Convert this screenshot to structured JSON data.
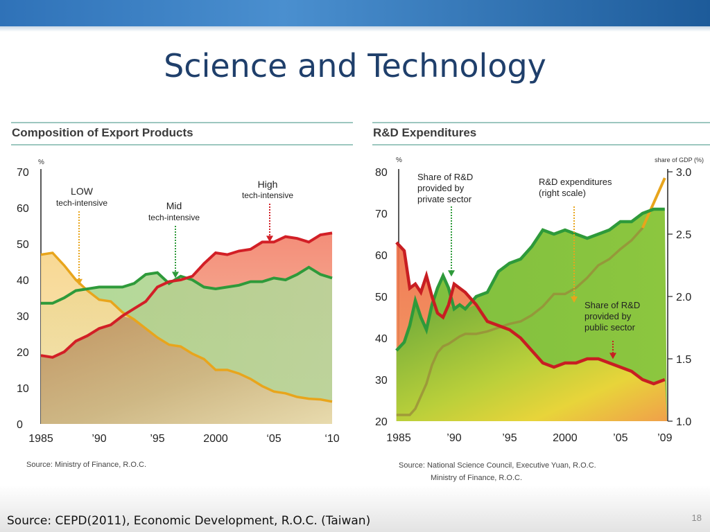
{
  "slide": {
    "title": "Science and Technology",
    "source": "Source: CEPD(2011), Economic Development, R.O.C. (Taiwan)",
    "page_number": "18"
  },
  "colors": {
    "topbar": "#2f72b8",
    "title": "#1f3f6b",
    "low": "#e8a51c",
    "mid": "#2e9a3a",
    "high": "#d21f26",
    "rd": "#e8a51c"
  },
  "chart_data": [
    {
      "type": "area",
      "title": "Composition of Export Products",
      "ylabel": "%",
      "ylim": [
        0,
        70
      ],
      "yticks": [
        "0",
        "10",
        "20",
        "30",
        "40",
        "50",
        "60",
        "70"
      ],
      "xticks": [
        {
          "year": 1985,
          "label": "1985"
        },
        {
          "year": 1990,
          "label": "’90"
        },
        {
          "year": 1995,
          "label": "’95"
        },
        {
          "year": 2000,
          "label": "2000"
        },
        {
          "year": 2005,
          "label": "‘05"
        },
        {
          "year": 2010,
          "label": "‘10"
        }
      ],
      "xlim": [
        1985,
        2010
      ],
      "x": [
        1985,
        1986,
        1987,
        1988,
        1989,
        1990,
        1991,
        1992,
        1993,
        1994,
        1995,
        1996,
        1997,
        1998,
        1999,
        2000,
        2001,
        2002,
        2003,
        2004,
        2005,
        2006,
        2007,
        2008,
        2009,
        2010
      ],
      "series": [
        {
          "key": "high",
          "values": [
            19,
            18.5,
            20,
            23,
            24.5,
            26.5,
            27.5,
            30,
            32,
            34,
            38,
            39.5,
            40,
            41,
            44.5,
            47.5,
            47,
            48,
            48.5,
            50.5,
            50.5,
            52,
            51.5,
            50.5,
            52.5,
            53
          ]
        },
        {
          "key": "mid",
          "values": [
            33.5,
            33.5,
            35,
            37,
            37.5,
            38,
            38,
            38,
            39,
            41.5,
            42,
            39,
            41,
            40,
            38,
            37.5,
            38,
            38.5,
            39.5,
            39.5,
            40.5,
            40,
            41.5,
            43.5,
            41.5,
            40.5
          ]
        },
        {
          "key": "low",
          "values": [
            47,
            47.5,
            44,
            40,
            37,
            34.5,
            34,
            31,
            29,
            26.5,
            24,
            22,
            21.5,
            19.5,
            18,
            15,
            15,
            14,
            12.5,
            10.5,
            9,
            8.5,
            7.5,
            7,
            6.8,
            6.2
          ]
        }
      ],
      "annotations": [
        {
          "key": "low",
          "lines": [
            "LOW",
            "tech-intensive"
          ]
        },
        {
          "key": "mid",
          "lines": [
            "Mid",
            "tech-intensive"
          ]
        },
        {
          "key": "high",
          "lines": [
            "High",
            "tech-intensive"
          ]
        }
      ],
      "source": "Source: Ministry of Finance, R.O.C."
    },
    {
      "type": "area",
      "title": "R&D Expenditures",
      "ylabel": "%",
      "ylim": [
        20,
        80
      ],
      "yticks": [
        "20",
        "30",
        "40",
        "50",
        "60",
        "70",
        "80"
      ],
      "y2label": "share of GDP (%)",
      "y2lim": [
        1.0,
        3.0
      ],
      "y2ticks": [
        "1.0",
        "1.5",
        "2.0",
        "2.5",
        "3.0"
      ],
      "xticks": [
        {
          "year": 1985,
          "label": "1985"
        },
        {
          "year": 1990,
          "label": "’90"
        },
        {
          "year": 1995,
          "label": "’95"
        },
        {
          "year": 2000,
          "label": "2000"
        },
        {
          "year": 2005,
          "label": "’05"
        },
        {
          "year": 2009,
          "label": "’09"
        }
      ],
      "xlim": [
        1985,
        2009.2
      ],
      "x": [
        1984.8,
        1985.5,
        1986,
        1986.5,
        1987,
        1987.5,
        1988,
        1988.5,
        1989,
        1989.5,
        1990,
        1990.5,
        1991,
        1992,
        1993,
        1994,
        1995,
        1996,
        1997,
        1998,
        1999,
        2000,
        2001,
        2002,
        2003,
        2004,
        2005,
        2006,
        2007,
        2008,
        2009
      ],
      "series": [
        {
          "key": "private",
          "values": [
            37,
            39,
            43,
            49,
            45,
            42,
            48,
            52,
            55,
            52,
            47,
            48,
            47,
            50,
            51,
            56,
            58,
            59,
            62,
            66,
            65,
            66,
            65,
            64,
            65,
            66,
            68,
            68,
            70,
            71,
            71
          ]
        },
        {
          "key": "public",
          "values": [
            63,
            61,
            52,
            53,
            51,
            55,
            50,
            46,
            45,
            48,
            53,
            52,
            51,
            48,
            44,
            43,
            42,
            40,
            37,
            34,
            33,
            34,
            34,
            35,
            35,
            34,
            33,
            32,
            30,
            29,
            30
          ]
        },
        {
          "key": "rd",
          "values": [
            1.05,
            1.05,
            1.05,
            1.1,
            1.2,
            1.3,
            1.45,
            1.55,
            1.6,
            1.62,
            1.65,
            1.68,
            1.7,
            1.7,
            1.72,
            1.75,
            1.78,
            1.8,
            1.85,
            1.92,
            2.02,
            2.02,
            2.07,
            2.15,
            2.25,
            2.3,
            2.38,
            2.45,
            2.55,
            2.75,
            2.95
          ]
        }
      ],
      "annotations": [
        {
          "key": "private",
          "lines": [
            "Share of R&D",
            "provided by",
            "private sector"
          ]
        },
        {
          "key": "rd",
          "lines": [
            "R&D expenditures",
            "(right scale)"
          ]
        },
        {
          "key": "public",
          "lines": [
            "Share of R&D",
            "provided by",
            "public sector"
          ]
        }
      ],
      "source": [
        "Source: National Science Council, Executive Yuan, R.O.C.",
        "Ministry of Finance, R.O.C."
      ]
    }
  ]
}
